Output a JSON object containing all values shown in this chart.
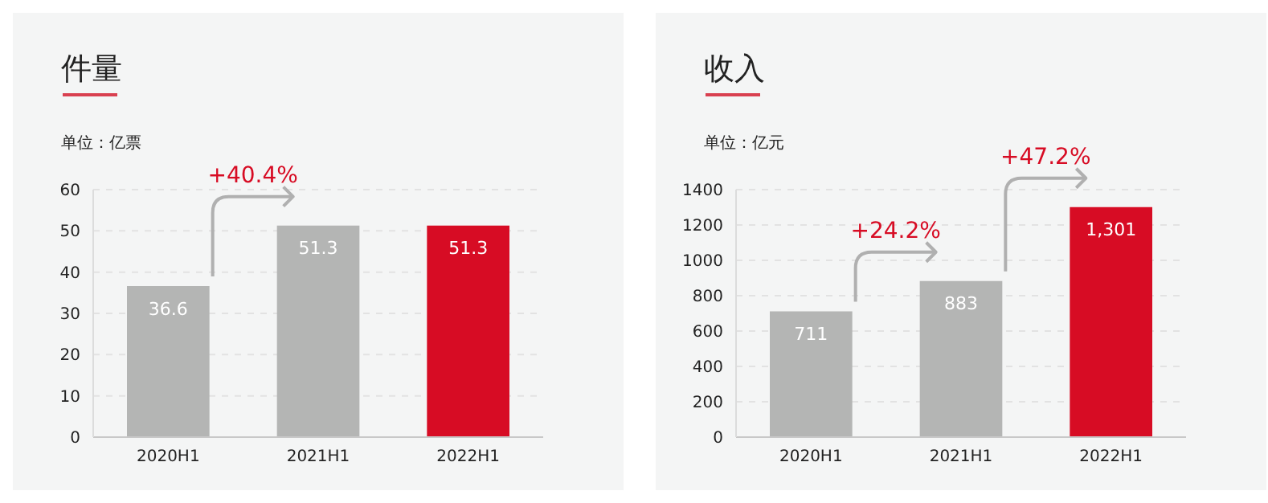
{
  "chart_data": [
    {
      "type": "bar",
      "title": "件量",
      "ylabel": "单位：亿票",
      "categories": [
        "2020H1",
        "2021H1",
        "2022H1"
      ],
      "values": [
        36.6,
        51.3,
        51.3
      ],
      "colors": [
        "#b4b5b4",
        "#b4b5b4",
        "#d70c24"
      ],
      "ylim": [
        0,
        60
      ],
      "yticks": [
        0,
        10,
        20,
        30,
        40,
        50,
        60
      ],
      "grid": "y",
      "data_labels": true,
      "annotations": [
        "+40.4%"
      ]
    },
    {
      "type": "bar",
      "title": "收入",
      "ylabel": "单位：亿元",
      "categories": [
        "2020H1",
        "2021H1",
        "2022H1"
      ],
      "values": [
        711,
        883,
        1301
      ],
      "value_labels": [
        "711",
        "883",
        "1,301"
      ],
      "colors": [
        "#b4b5b4",
        "#b4b5b4",
        "#d70c24"
      ],
      "ylim": [
        0,
        1400
      ],
      "yticks": [
        0,
        200,
        400,
        600,
        800,
        1000,
        1200,
        1400
      ],
      "grid": "y",
      "annotations": [
        "+24.2%",
        "+47.2%"
      ]
    }
  ]
}
